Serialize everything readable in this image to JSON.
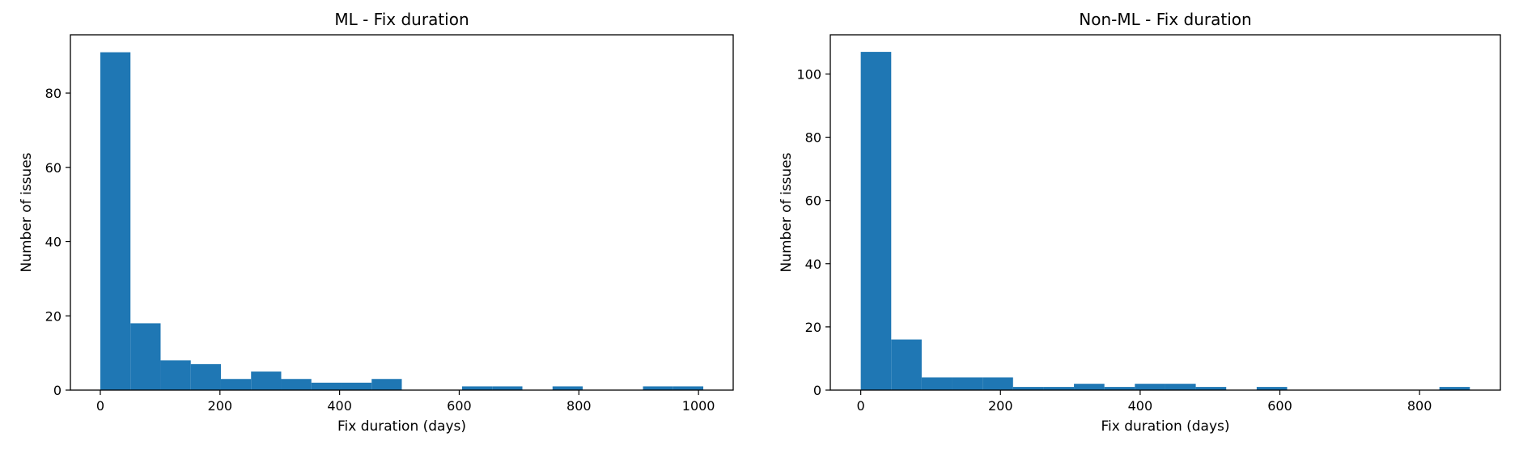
{
  "chart_data": [
    {
      "type": "bar",
      "title": "ML - Fix duration",
      "xlabel": "Fix duration (days)",
      "ylabel": "Number of issues",
      "xlim": [
        -50,
        1058
      ],
      "ylim": [
        0,
        95.7
      ],
      "xticks": [
        0,
        200,
        400,
        600,
        800,
        1000
      ],
      "yticks": [
        0,
        20,
        40,
        60,
        80
      ],
      "color": "#1f77b4",
      "grid": false,
      "bins": [
        [
          0,
          50.4,
          91
        ],
        [
          50.4,
          100.8,
          18
        ],
        [
          100.8,
          151.2,
          8
        ],
        [
          151.2,
          201.6,
          7
        ],
        [
          201.6,
          252,
          3
        ],
        [
          252,
          302.4,
          5
        ],
        [
          302.4,
          352.8,
          3
        ],
        [
          352.8,
          403.2,
          2
        ],
        [
          403.2,
          453.6,
          2
        ],
        [
          453.6,
          504,
          3
        ],
        [
          504,
          554.4,
          0
        ],
        [
          554.4,
          604.8,
          0
        ],
        [
          604.8,
          655.2,
          1
        ],
        [
          655.2,
          705.6,
          1
        ],
        [
          705.6,
          756,
          0
        ],
        [
          756,
          806.4,
          1
        ],
        [
          806.4,
          856.8,
          0
        ],
        [
          856.8,
          907.2,
          0
        ],
        [
          907.2,
          957.6,
          1
        ],
        [
          957.6,
          1008,
          1
        ]
      ]
    },
    {
      "type": "bar",
      "title": "Non-ML - Fix duration",
      "xlabel": "Fix duration (days)",
      "ylabel": "Number of issues",
      "xlim": [
        -43.6,
        915.7
      ],
      "ylim": [
        0,
        112.4
      ],
      "xticks": [
        0,
        200,
        400,
        600,
        800
      ],
      "yticks": [
        0,
        20,
        40,
        60,
        80,
        100
      ],
      "color": "#1f77b4",
      "grid": false,
      "bins": [
        [
          0,
          43.6,
          107
        ],
        [
          43.6,
          87.2,
          16
        ],
        [
          87.2,
          130.8,
          4
        ],
        [
          130.8,
          174.4,
          4
        ],
        [
          174.4,
          218,
          4
        ],
        [
          218,
          261.6,
          1
        ],
        [
          261.6,
          305.2,
          1
        ],
        [
          305.2,
          348.8,
          2
        ],
        [
          348.8,
          392.4,
          1
        ],
        [
          392.4,
          436,
          2
        ],
        [
          436,
          479.6,
          2
        ],
        [
          479.6,
          523.2,
          1
        ],
        [
          523.2,
          566.8,
          0
        ],
        [
          566.8,
          610.4,
          1
        ],
        [
          610.4,
          654,
          0
        ],
        [
          654,
          697.6,
          0
        ],
        [
          697.6,
          741.2,
          0
        ],
        [
          741.2,
          784.8,
          0
        ],
        [
          784.8,
          828.4,
          0
        ],
        [
          828.4,
          872,
          1
        ]
      ]
    }
  ]
}
